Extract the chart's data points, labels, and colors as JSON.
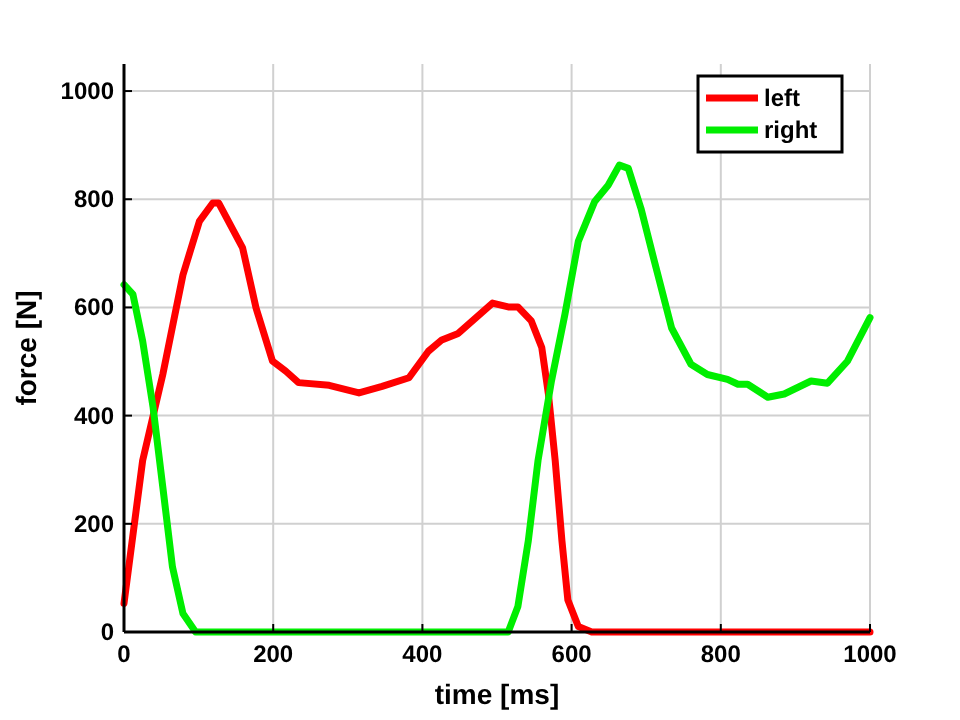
{
  "chart_data": {
    "type": "line",
    "xlabel": "time [ms]",
    "ylabel": "force [N]",
    "xlim": [
      0,
      1000
    ],
    "ylim": [
      0,
      1050
    ],
    "xticks": [
      0,
      200,
      400,
      600,
      800,
      1000
    ],
    "yticks": [
      0,
      200,
      400,
      600,
      800,
      1000
    ],
    "grid": true,
    "legend": "top right",
    "line_style": "solid",
    "series": [
      {
        "name": "left",
        "color": "#ff0000",
        "x": [
          0,
          25,
          52,
          79,
          101,
          119,
          127,
          159,
          177,
          199,
          217,
          234,
          275,
          315,
          346,
          382,
          408,
          426,
          448,
          494,
          515,
          528,
          546,
          560,
          569,
          578,
          587,
          595,
          609,
          627,
          1000
        ],
        "values": [
          53,
          317,
          476,
          660,
          759,
          793,
          793,
          710,
          599,
          501,
          482,
          461,
          456,
          442,
          454,
          470,
          519,
          540,
          552,
          608,
          601,
          601,
          575,
          526,
          439,
          317,
          169,
          59,
          10,
          0,
          0
        ]
      },
      {
        "name": "right",
        "color": "#00ee00",
        "x": [
          0,
          12,
          25,
          39,
          52,
          65,
          79,
          96,
          515,
          528,
          542,
          555,
          573,
          591,
          609,
          631,
          649,
          664,
          676,
          693,
          711,
          734,
          760,
          782,
          809,
          823,
          836,
          863,
          885,
          921,
          943,
          970,
          1000
        ],
        "values": [
          642,
          624,
          538,
          415,
          268,
          120,
          34,
          0,
          0,
          47,
          169,
          317,
          464,
          587,
          722,
          796,
          826,
          863,
          857,
          783,
          685,
          562,
          495,
          476,
          467,
          458,
          458,
          434,
          440,
          464,
          460,
          501,
          581
        ]
      }
    ]
  }
}
